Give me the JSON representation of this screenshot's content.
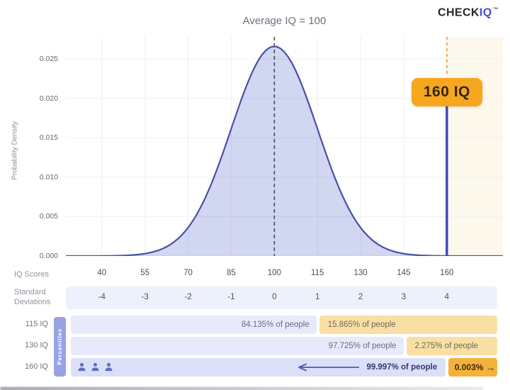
{
  "brand": {
    "name_primary": "CHECK",
    "name_accent": "IQ",
    "trademark": "TM"
  },
  "chart_data": {
    "type": "area",
    "title": "Average IQ = 100",
    "ylabel": "Probability Density",
    "distribution": {
      "kind": "normal",
      "mean": 100,
      "sd": 15
    },
    "x_axis": {
      "label": "IQ Scores",
      "ticks": [
        40,
        55,
        70,
        85,
        100,
        115,
        130,
        145,
        160
      ]
    },
    "sd_axis": {
      "label_line1": "Standard",
      "label_line2": "Deviations",
      "ticks": [
        -4,
        -3,
        -2,
        -1,
        0,
        1,
        2,
        3,
        4
      ]
    },
    "y_axis": {
      "tick_labels": [
        "0.000",
        "0.005",
        "0.010",
        "0.015",
        "0.020",
        "0.025"
      ],
      "tick_values": [
        0,
        0.005,
        0.01,
        0.015,
        0.02,
        0.025
      ]
    },
    "xlim": [
      27.5,
      179.5
    ],
    "ylim": [
      0,
      0.0278
    ],
    "mean_line_iq": 100,
    "marker": {
      "iq": 160,
      "label": "160 IQ"
    },
    "grid": true,
    "legend": false
  },
  "percentiles": {
    "side_label": "Percentiles",
    "rows": [
      {
        "label": "115 IQ",
        "left_text": "84.135% of people",
        "right_text": "15.865% of people",
        "people_icons": 0,
        "left_arrow": false,
        "right_arrow": ""
      },
      {
        "label": "130 IQ",
        "left_text": "97.725% of people",
        "right_text": "2.275% of people",
        "people_icons": 0,
        "left_arrow": false,
        "right_arrow": ""
      },
      {
        "label": "160 IQ",
        "left_text": "99.997% of people",
        "right_text": "0.003%",
        "people_icons": 3,
        "left_arrow": true,
        "right_arrow": "→"
      }
    ]
  },
  "colors": {
    "accent_indigo": "#3a47b4",
    "curve_stroke": "#4851a6",
    "curve_fill": "rgba(85,105,205,0.27)",
    "mean_dash": "#4b5563",
    "badge_bg": "#f7a71f",
    "highlight_band": "#fdf8ec",
    "orange_dash": "#f2a93a",
    "lavender_bar": "#e7eafb",
    "lavender_bar_dark": "#dbe0f8",
    "amber_bar_light": "#fadfa4",
    "amber_bar_dark": "#f4b23a",
    "percentiles_tab": "#99a2e3",
    "grid_line": "#eef0f6"
  }
}
